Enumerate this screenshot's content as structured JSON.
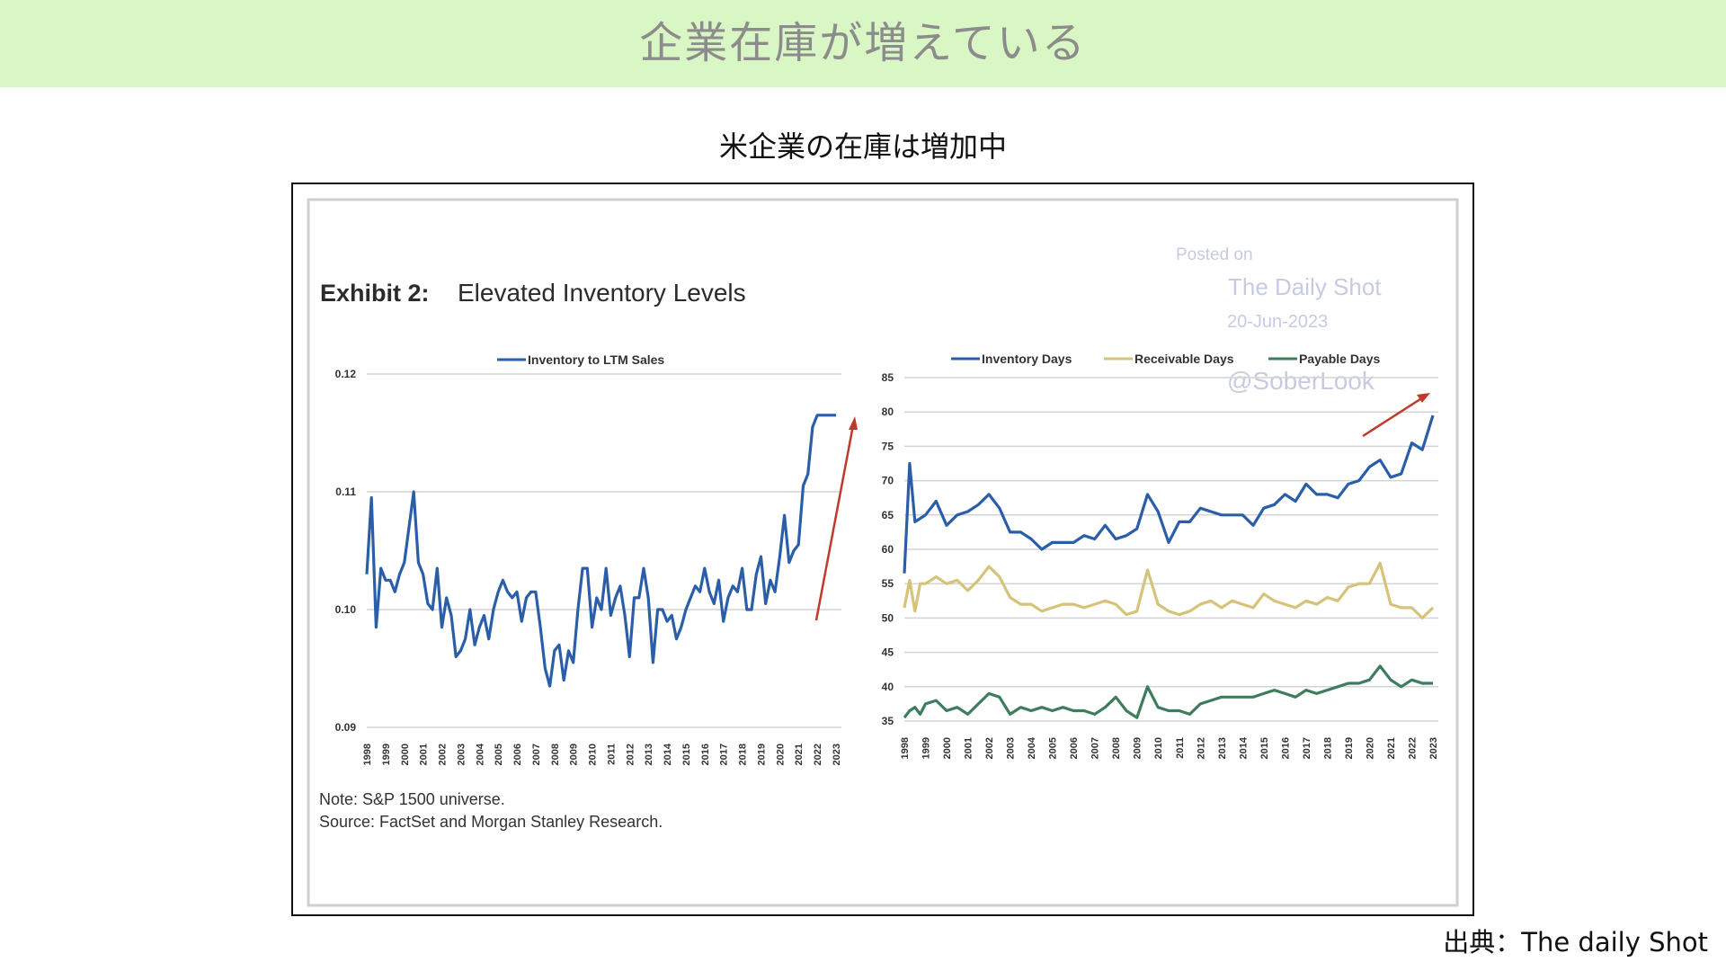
{
  "header": {
    "title": "企業在庫が増えている"
  },
  "subtitle": "米企業の在庫は増加中",
  "source": "出典：The daily Shot",
  "colors": {
    "banner": "#d9f7c4",
    "inventory": "#2a5ea8",
    "receivable": "#d6c37a",
    "payable": "#3d7d5d",
    "arrow": "#c0392b"
  },
  "exhibit": {
    "label": "Exhibit 2:",
    "title": "Elevated Inventory Levels",
    "note": "Note: S&P 1500 universe.",
    "source": "Source: FactSet and Morgan Stanley Research."
  },
  "watermark": {
    "posted": "Posted on",
    "site": "The Daily Shot",
    "date": "20-Jun-2023",
    "handle": "@SoberLook"
  },
  "chart_data": [
    {
      "type": "line",
      "title": "",
      "xlabel": "",
      "ylabel": "",
      "ylim": [
        0.09,
        0.12
      ],
      "yticks": [
        "0.12",
        "0.11",
        "0.10",
        "0.09"
      ],
      "categories": [
        "1998",
        "1999",
        "2000",
        "2001",
        "2002",
        "2003",
        "2004",
        "2005",
        "2006",
        "2007",
        "2008",
        "2009",
        "2010",
        "2011",
        "2012",
        "2013",
        "2014",
        "2015",
        "2016",
        "2017",
        "2018",
        "2019",
        "2020",
        "2021",
        "2022",
        "2023"
      ],
      "legend_position": "top",
      "grid": true,
      "series": [
        {
          "name": "Inventory to LTM Sales",
          "color": "#2a5ea8",
          "x": [
            1998,
            1998.25,
            1998.5,
            1998.75,
            1999,
            1999.25,
            1999.5,
            1999.75,
            2000,
            2000.25,
            2000.5,
            2000.75,
            2001,
            2001.25,
            2001.5,
            2001.75,
            2002,
            2002.25,
            2002.5,
            2002.75,
            2003,
            2003.25,
            2003.5,
            2003.75,
            2004,
            2004.25,
            2004.5,
            2004.75,
            2005,
            2005.25,
            2005.5,
            2005.75,
            2006,
            2006.25,
            2006.5,
            2006.75,
            2007,
            2007.25,
            2007.5,
            2007.75,
            2008,
            2008.25,
            2008.5,
            2008.75,
            2009,
            2009.25,
            2009.5,
            2009.75,
            2010,
            2010.25,
            2010.5,
            2010.75,
            2011,
            2011.25,
            2011.5,
            2011.75,
            2012,
            2012.25,
            2012.5,
            2012.75,
            2013,
            2013.25,
            2013.5,
            2013.75,
            2014,
            2014.25,
            2014.5,
            2014.75,
            2015,
            2015.25,
            2015.5,
            2015.75,
            2016,
            2016.25,
            2016.5,
            2016.75,
            2017,
            2017.25,
            2017.5,
            2017.75,
            2018,
            2018.25,
            2018.5,
            2018.75,
            2019,
            2019.25,
            2019.5,
            2019.75,
            2020,
            2020.25,
            2020.5,
            2020.75,
            2021,
            2021.25,
            2021.5,
            2021.75,
            2022,
            2022.25,
            2022.5,
            2022.75,
            2023
          ],
          "values": [
            0.103,
            0.1095,
            0.0985,
            0.1035,
            0.1025,
            0.1025,
            0.1015,
            0.103,
            0.104,
            0.107,
            0.11,
            0.104,
            0.103,
            0.1005,
            0.1,
            0.1035,
            0.0985,
            0.101,
            0.0995,
            0.096,
            0.0965,
            0.0975,
            0.1,
            0.097,
            0.0985,
            0.0995,
            0.0975,
            0.1,
            0.1015,
            0.1025,
            0.1015,
            0.101,
            0.1015,
            0.099,
            0.101,
            0.1015,
            0.1015,
            0.0985,
            0.095,
            0.0935,
            0.0965,
            0.097,
            0.094,
            0.0965,
            0.0955,
            0.1,
            0.1035,
            0.1035,
            0.0985,
            0.101,
            0.1,
            0.1035,
            0.0995,
            0.101,
            0.102,
            0.0995,
            0.096,
            0.101,
            0.101,
            0.1035,
            0.101,
            0.0955,
            0.1,
            0.1,
            0.099,
            0.0995,
            0.0975,
            0.0985,
            0.1,
            0.101,
            0.102,
            0.1015,
            0.1035,
            0.1015,
            0.1005,
            0.1025,
            0.099,
            0.101,
            0.102,
            0.1015,
            0.1035,
            0.1,
            0.1,
            0.103,
            0.1045,
            0.1005,
            0.1025,
            0.1015,
            0.1045,
            0.108,
            0.104,
            0.105,
            0.1055,
            0.1105,
            0.1115,
            0.1155,
            0.1165,
            0.1165,
            0.1165,
            0.1165,
            0.1165
          ]
        }
      ]
    },
    {
      "type": "line",
      "title": "",
      "xlabel": "",
      "ylabel": "",
      "ylim": [
        35,
        85
      ],
      "yticks": [
        "85",
        "80",
        "75",
        "70",
        "65",
        "60",
        "55",
        "50",
        "45",
        "40",
        "35"
      ],
      "categories": [
        "1998",
        "1999",
        "2000",
        "2001",
        "2002",
        "2003",
        "2004",
        "2005",
        "2006",
        "2007",
        "2008",
        "2009",
        "2010",
        "2011",
        "2012",
        "2013",
        "2014",
        "2015",
        "2016",
        "2017",
        "2018",
        "2019",
        "2020",
        "2021",
        "2022",
        "2023"
      ],
      "legend_position": "top",
      "grid": true,
      "series": [
        {
          "name": "Inventory Days",
          "color": "#2a5ea8",
          "x": [
            1998,
            1998.25,
            1998.5,
            1998.75,
            1999,
            1999.5,
            2000,
            2000.5,
            2001,
            2001.5,
            2002,
            2002.5,
            2003,
            2003.5,
            2004,
            2004.5,
            2005,
            2005.5,
            2006,
            2006.5,
            2007,
            2007.5,
            2008,
            2008.5,
            2009,
            2009.5,
            2010,
            2010.5,
            2011,
            2011.5,
            2012,
            2012.5,
            2013,
            2013.5,
            2014,
            2014.5,
            2015,
            2015.5,
            2016,
            2016.5,
            2017,
            2017.5,
            2018,
            2018.5,
            2019,
            2019.5,
            2020,
            2020.5,
            2021,
            2021.5,
            2022,
            2022.5,
            2023
          ],
          "values": [
            56.5,
            72.5,
            64,
            64.5,
            65,
            67,
            63.5,
            65,
            65.5,
            66.5,
            68,
            66,
            62.5,
            62.5,
            61.5,
            60,
            61,
            61,
            61,
            62,
            61.5,
            63.5,
            61.5,
            62,
            63,
            68,
            65.5,
            61,
            64,
            64,
            66,
            65.5,
            65,
            65,
            65,
            63.5,
            66,
            66.5,
            68,
            67,
            69.5,
            68,
            68,
            67.5,
            69.5,
            70,
            72,
            73,
            70.5,
            71,
            75.5,
            74.5,
            79.5
          ]
        },
        {
          "name": "Receivable Days",
          "color": "#d6c37a",
          "x": [
            1998,
            1998.25,
            1998.5,
            1998.75,
            1999,
            1999.5,
            2000,
            2000.5,
            2001,
            2001.5,
            2002,
            2002.5,
            2003,
            2003.5,
            2004,
            2004.5,
            2005,
            2005.5,
            2006,
            2006.5,
            2007,
            2007.5,
            2008,
            2008.5,
            2009,
            2009.5,
            2010,
            2010.5,
            2011,
            2011.5,
            2012,
            2012.5,
            2013,
            2013.5,
            2014,
            2014.5,
            2015,
            2015.5,
            2016,
            2016.5,
            2017,
            2017.5,
            2018,
            2018.5,
            2019,
            2019.5,
            2020,
            2020.5,
            2021,
            2021.5,
            2022,
            2022.5,
            2023
          ],
          "values": [
            51.5,
            55.5,
            51,
            55,
            55,
            56,
            55,
            55.5,
            54,
            55.5,
            57.5,
            56,
            53,
            52,
            52,
            51,
            51.5,
            52,
            52,
            51.5,
            52,
            52.5,
            52,
            50.5,
            51,
            57,
            52,
            51,
            50.5,
            51,
            52,
            52.5,
            51.5,
            52.5,
            52,
            51.5,
            53.5,
            52.5,
            52,
            51.5,
            52.5,
            52,
            53,
            52.5,
            54.5,
            55,
            55,
            58,
            52,
            51.5,
            51.5,
            50,
            51.5
          ]
        },
        {
          "name": "Payable Days",
          "color": "#3d7d5d",
          "x": [
            1998,
            1998.25,
            1998.5,
            1998.75,
            1999,
            1999.5,
            2000,
            2000.5,
            2001,
            2001.5,
            2002,
            2002.5,
            2003,
            2003.5,
            2004,
            2004.5,
            2005,
            2005.5,
            2006,
            2006.5,
            2007,
            2007.5,
            2008,
            2008.5,
            2009,
            2009.5,
            2010,
            2010.5,
            2011,
            2011.5,
            2012,
            2012.5,
            2013,
            2013.5,
            2014,
            2014.5,
            2015,
            2015.5,
            2016,
            2016.5,
            2017,
            2017.5,
            2018,
            2018.5,
            2019,
            2019.5,
            2020,
            2020.5,
            2021,
            2021.5,
            2022,
            2022.5,
            2023
          ],
          "values": [
            35.5,
            36.5,
            37,
            36,
            37.5,
            38,
            36.5,
            37,
            36,
            37.5,
            39,
            38.5,
            36,
            37,
            36.5,
            37,
            36.5,
            37,
            36.5,
            36.5,
            36,
            37,
            38.5,
            36.5,
            35.5,
            40,
            37,
            36.5,
            36.5,
            36,
            37.5,
            38,
            38.5,
            38.5,
            38.5,
            38.5,
            39,
            39.5,
            39,
            38.5,
            39.5,
            39,
            39.5,
            40,
            40.5,
            40.5,
            41,
            43,
            41,
            40,
            41,
            40.5,
            40.5
          ]
        }
      ]
    }
  ]
}
